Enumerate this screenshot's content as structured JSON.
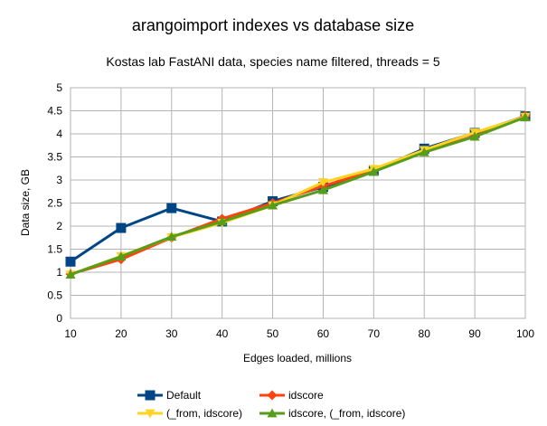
{
  "chart_data": {
    "type": "line",
    "title": "arangoimport indexes vs database size",
    "subtitle": "Kostas lab FastANI data, species name filtered, threads = 5",
    "xlabel": "Edges loaded, millions",
    "ylabel": "Data size, GB",
    "x": [
      10,
      20,
      30,
      40,
      50,
      60,
      70,
      80,
      90,
      100
    ],
    "xlim": [
      10,
      100
    ],
    "ylim": [
      0,
      5
    ],
    "x_ticks": [
      "10",
      "20",
      "30",
      "40",
      "50",
      "60",
      "70",
      "80",
      "90",
      "100"
    ],
    "y_ticks": [
      "0",
      "0.5",
      "1",
      "1.5",
      "2",
      "2.5",
      "3",
      "3.5",
      "4",
      "4.5",
      "5"
    ],
    "grid": true,
    "legend_position": "bottom",
    "series": [
      {
        "name": "Default",
        "color": "#004586",
        "marker": "square",
        "values": [
          1.23,
          1.96,
          2.39,
          2.1,
          2.54,
          2.85,
          3.2,
          3.68,
          4.02,
          4.38
        ]
      },
      {
        "name": "idscore",
        "color": "#ff420e",
        "marker": "diamond",
        "values": [
          0.96,
          1.28,
          1.75,
          2.16,
          2.5,
          2.87,
          3.2,
          3.62,
          3.95,
          4.39
        ]
      },
      {
        "name": "(_from, idscore)",
        "color": "#ffd320",
        "marker": "triangle-down",
        "values": [
          0.95,
          1.35,
          1.76,
          2.07,
          2.45,
          2.95,
          3.24,
          3.65,
          4.03,
          4.37
        ]
      },
      {
        "name": "idscore, (_from, idscore)",
        "color": "#579d1c",
        "marker": "triangle-up",
        "values": [
          0.95,
          1.34,
          1.77,
          2.1,
          2.45,
          2.78,
          3.18,
          3.6,
          3.94,
          4.36
        ]
      }
    ]
  }
}
